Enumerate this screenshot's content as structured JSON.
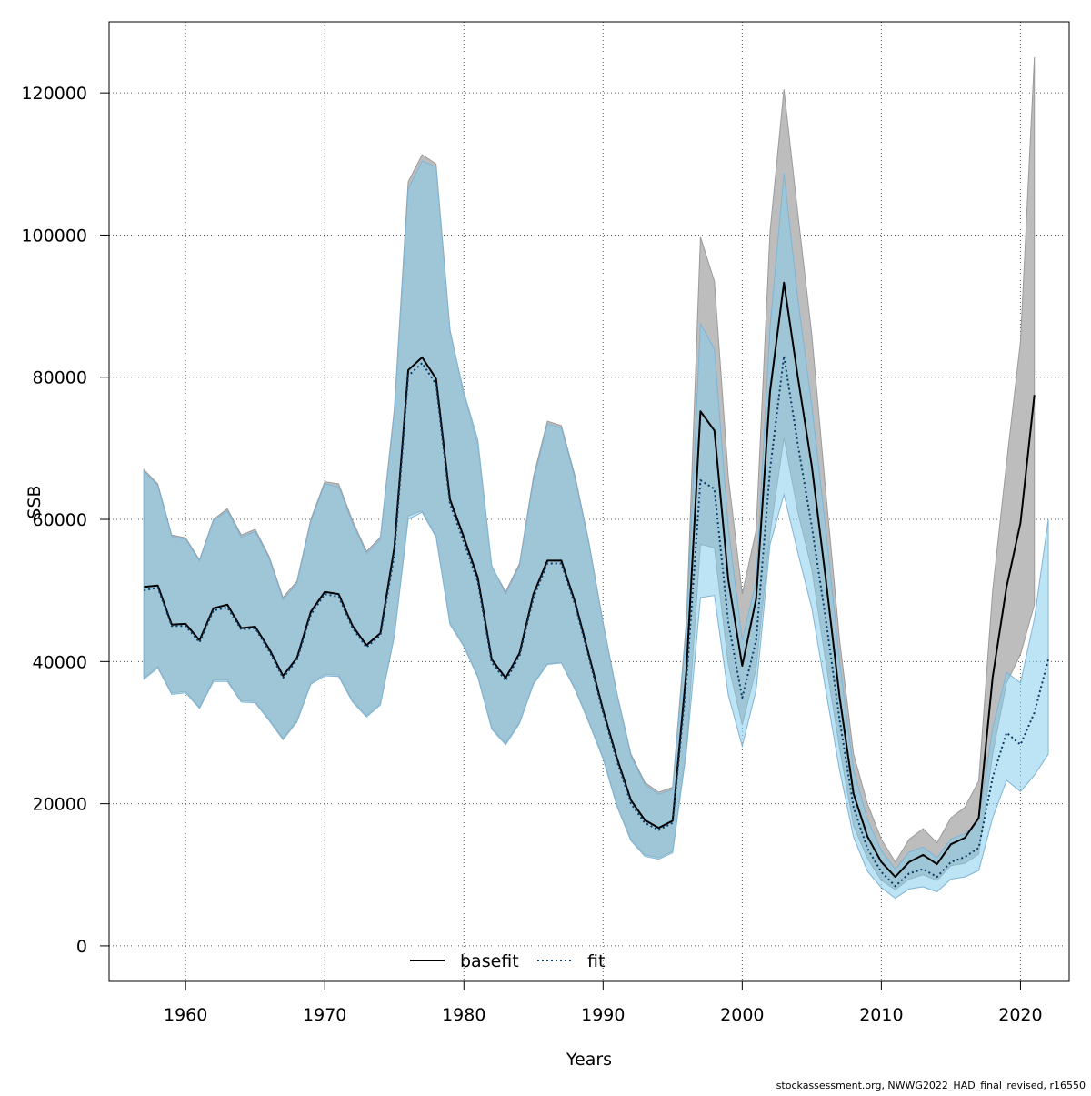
{
  "chart_data": {
    "type": "line",
    "xlabel": "Years",
    "ylabel": "SSB",
    "xlim": [
      1954.5,
      2023.5
    ],
    "ylim": [
      -5000,
      130000
    ],
    "x_ticks": [
      1960,
      1970,
      1980,
      1990,
      2000,
      2010,
      2020
    ],
    "y_ticks": [
      0,
      20000,
      40000,
      60000,
      80000,
      100000,
      120000
    ],
    "grid": true,
    "legend_position": "bottom",
    "series": [
      {
        "name": "basefit",
        "line_style": "solid",
        "color": "#000000",
        "band_color": "#bdbdbd",
        "x": [
          1957,
          1958,
          1959,
          1960,
          1961,
          1962,
          1963,
          1964,
          1965,
          1966,
          1967,
          1968,
          1969,
          1970,
          1971,
          1972,
          1973,
          1974,
          1975,
          1976,
          1977,
          1978,
          1979,
          1980,
          1981,
          1982,
          1983,
          1984,
          1985,
          1986,
          1987,
          1988,
          1989,
          1990,
          1991,
          1992,
          1993,
          1994,
          1995,
          1996,
          1997,
          1998,
          1999,
          2000,
          2001,
          2002,
          2003,
          2004,
          2005,
          2006,
          2007,
          2008,
          2009,
          2010,
          2011,
          2012,
          2013,
          2014,
          2015,
          2016,
          2017,
          2018,
          2019,
          2020,
          2021
        ],
        "values": [
          50500,
          50700,
          45200,
          45300,
          43000,
          47500,
          48000,
          44700,
          44900,
          41800,
          38000,
          40500,
          47000,
          49800,
          49500,
          45000,
          42300,
          44000,
          56000,
          81000,
          82800,
          79800,
          62800,
          57500,
          51800,
          40300,
          37700,
          41200,
          49500,
          54200,
          54200,
          48300,
          40800,
          33200,
          26400,
          20500,
          17700,
          16600,
          17600,
          39000,
          75200,
          72500,
          51500,
          39400,
          48800,
          78000,
          93300,
          80000,
          67500,
          51700,
          35000,
          21400,
          15400,
          11800,
          9700,
          11800,
          12800,
          11500,
          14300,
          15200,
          18000,
          37800,
          50500,
          59500,
          77500
        ],
        "upper": [
          67000,
          65000,
          57800,
          57400,
          54300,
          60000,
          61500,
          57800,
          58600,
          54800,
          49000,
          51300,
          60000,
          65300,
          65000,
          59800,
          55500,
          57500,
          75500,
          107500,
          111300,
          110000,
          86700,
          77500,
          70600,
          53400,
          49800,
          53800,
          66000,
          73800,
          73200,
          66000,
          56600,
          45500,
          35500,
          27000,
          23000,
          21600,
          22300,
          46000,
          99700,
          93500,
          66000,
          49500,
          58500,
          100500,
          120500,
          103000,
          86000,
          64000,
          43000,
          27000,
          20000,
          15000,
          11800,
          15000,
          16500,
          14500,
          18000,
          19500,
          23200,
          50000,
          68000,
          85000,
          125000
        ],
        "lower": [
          37700,
          39300,
          35600,
          35800,
          33600,
          37400,
          37400,
          34500,
          34400,
          31900,
          29200,
          31700,
          37000,
          38200,
          38100,
          34500,
          32400,
          34100,
          43700,
          60500,
          61200,
          57700,
          45500,
          42300,
          38000,
          30700,
          28500,
          31500,
          37000,
          39700,
          39900,
          36200,
          31500,
          26500,
          19800,
          15000,
          12800,
          12400,
          13300,
          28000,
          56500,
          56000,
          39600,
          31100,
          39000,
          58000,
          71500,
          61000,
          53000,
          40000,
          27800,
          16900,
          12300,
          9200,
          7900,
          9400,
          10000,
          9200,
          11300,
          11600,
          12900,
          27000,
          37000,
          41000,
          48000
        ]
      },
      {
        "name": "fit",
        "line_style": "dotted",
        "color": "#0b3a66",
        "band_color": "#87ceeb",
        "x": [
          1957,
          1958,
          1959,
          1960,
          1961,
          1962,
          1963,
          1964,
          1965,
          1966,
          1967,
          1968,
          1969,
          1970,
          1971,
          1972,
          1973,
          1974,
          1975,
          1976,
          1977,
          1978,
          1979,
          1980,
          1981,
          1982,
          1983,
          1984,
          1985,
          1986,
          1987,
          1988,
          1989,
          1990,
          1991,
          1992,
          1993,
          1994,
          1995,
          1996,
          1997,
          1998,
          1999,
          2000,
          2001,
          2002,
          2003,
          2004,
          2005,
          2006,
          2007,
          2008,
          2009,
          2010,
          2011,
          2012,
          2013,
          2014,
          2015,
          2016,
          2017,
          2018,
          2019,
          2020,
          2021,
          2022
        ],
        "values": [
          50000,
          50400,
          45000,
          45000,
          42700,
          47200,
          47600,
          44500,
          44700,
          41500,
          37700,
          40200,
          46600,
          49500,
          49100,
          44700,
          42000,
          43700,
          55000,
          80200,
          82000,
          79000,
          62200,
          56800,
          51200,
          39900,
          37300,
          40800,
          49000,
          53800,
          53800,
          47900,
          40400,
          32800,
          26000,
          20000,
          17300,
          16300,
          17300,
          37500,
          65500,
          64300,
          45500,
          34900,
          43000,
          67000,
          83000,
          70500,
          59000,
          46000,
          31800,
          19500,
          13700,
          10400,
          8400,
          10200,
          10800,
          9700,
          11800,
          12500,
          13800,
          23700,
          30000,
          28300,
          32800,
          40300
        ],
        "upper": [
          66800,
          64700,
          57600,
          57200,
          54100,
          59800,
          61200,
          57500,
          58300,
          54500,
          48700,
          51000,
          59700,
          65000,
          64600,
          59400,
          55200,
          57200,
          75000,
          106500,
          110400,
          109600,
          86500,
          77900,
          71200,
          53500,
          49500,
          53500,
          65500,
          73400,
          72900,
          65600,
          56300,
          45300,
          35300,
          26700,
          22700,
          21300,
          22000,
          45000,
          87500,
          84000,
          58800,
          43000,
          51300,
          87000,
          108700,
          91000,
          76000,
          58700,
          40000,
          24800,
          17800,
          13400,
          10800,
          13200,
          13900,
          12400,
          15000,
          15800,
          17600,
          30600,
          38500,
          37000,
          46000,
          60000
        ],
        "lower": [
          37500,
          39100,
          35400,
          35600,
          33400,
          37200,
          37200,
          34300,
          34200,
          31700,
          29000,
          31500,
          36800,
          38000,
          37900,
          34300,
          32200,
          33900,
          43500,
          60000,
          61000,
          57500,
          45200,
          42100,
          37800,
          30500,
          28300,
          31300,
          36800,
          39600,
          39800,
          36000,
          31300,
          26300,
          19600,
          14800,
          12600,
          12200,
          13100,
          27500,
          49000,
          49300,
          35300,
          28100,
          36000,
          56500,
          63500,
          55300,
          47500,
          36000,
          24700,
          15300,
          10500,
          8200,
          6700,
          8000,
          8300,
          7600,
          9400,
          9700,
          10600,
          18000,
          23300,
          21700,
          24000,
          27000
        ]
      }
    ],
    "legend": {
      "basefit": "basefit",
      "fit": "fit"
    },
    "footer": "stockassessment.org, NWWG2022_HAD_final_revised, r16550"
  }
}
